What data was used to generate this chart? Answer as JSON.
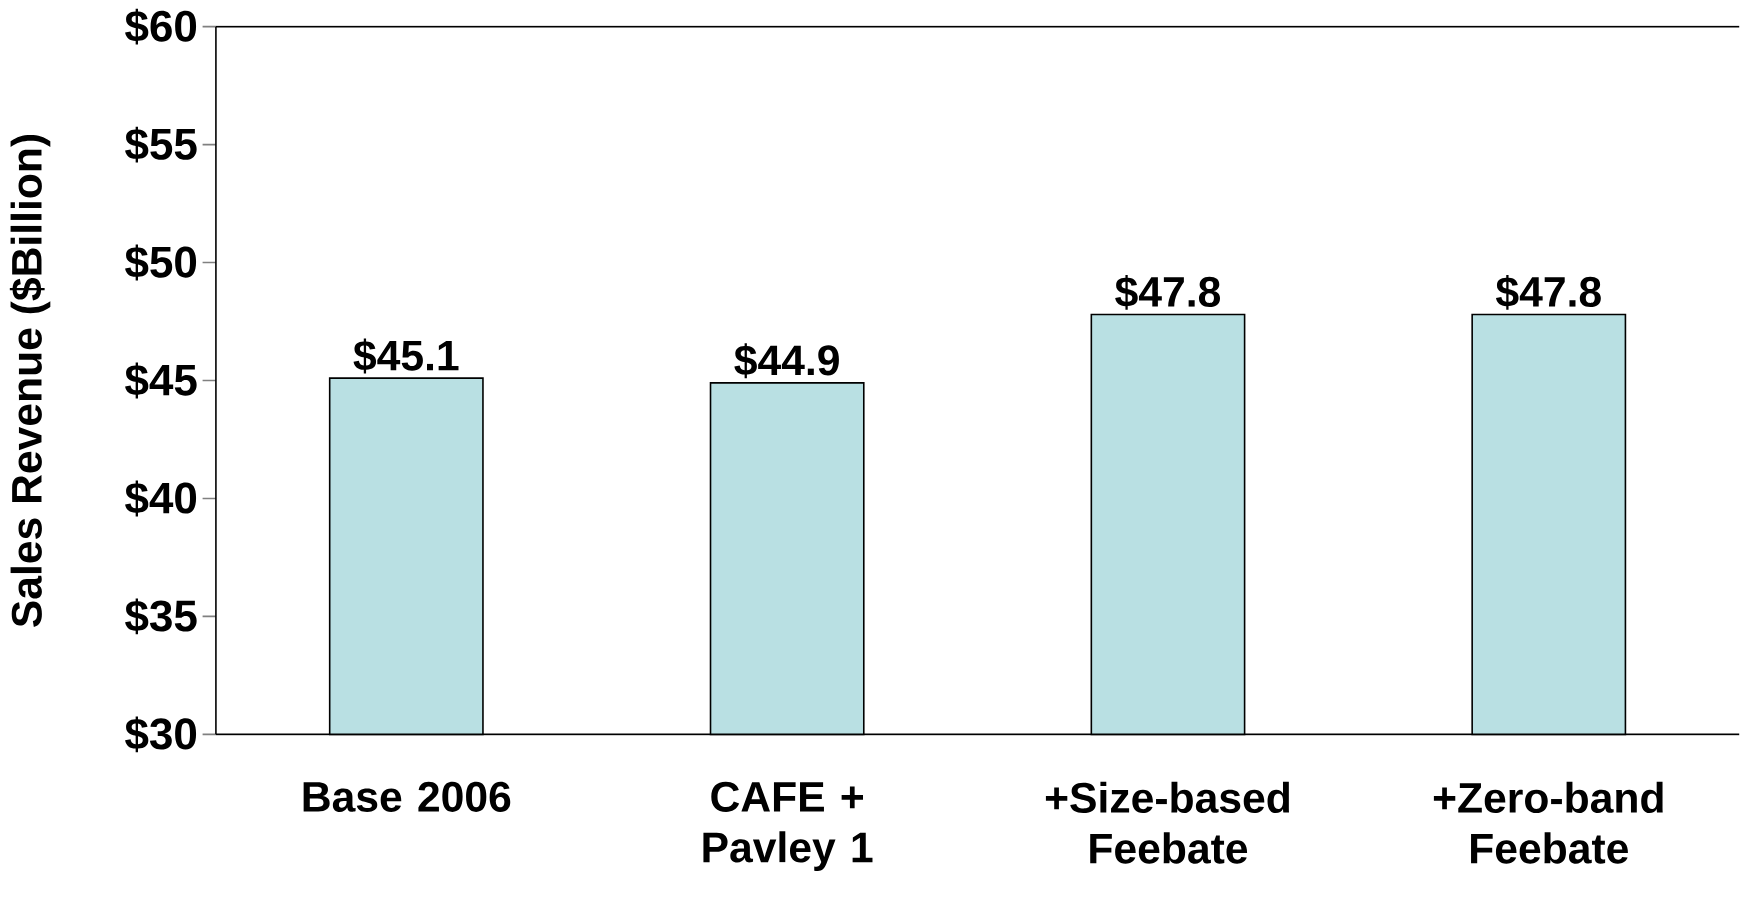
{
  "chart_data": {
    "type": "bar",
    "ylabel": "Sales Revenue ($Billion)",
    "categories": [
      "Base 2006",
      "CAFE + Pavley 1",
      "+Size-based Feebate",
      "+Zero-band Feebate"
    ],
    "values": [
      45.1,
      44.9,
      47.8,
      47.8
    ],
    "value_labels": [
      "$45.1",
      "$44.9",
      "$47.8",
      "$47.8"
    ],
    "color": "#b9e0e3",
    "ylim": [
      30,
      60
    ],
    "yticks": [
      {
        "value": 30,
        "label": "$30"
      },
      {
        "value": 35,
        "label": "$35"
      },
      {
        "value": 40,
        "label": "$40"
      },
      {
        "value": 45,
        "label": "$45"
      },
      {
        "value": 50,
        "label": "$50"
      },
      {
        "value": 55,
        "label": "$55"
      },
      {
        "value": 60,
        "label": "$60"
      }
    ]
  }
}
